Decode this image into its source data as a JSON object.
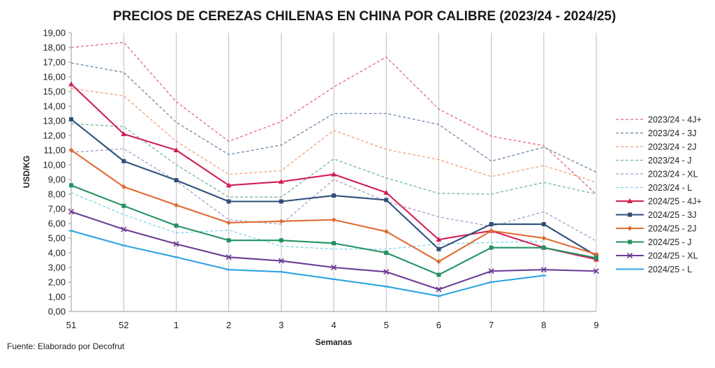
{
  "chart_data": {
    "type": "line",
    "title": "PRECIOS DE CEREZAS CHILENAS EN CHINA POR CALIBRE (2023/24 - 2024/25)",
    "xlabel": "Semanas",
    "ylabel": "USD/KG",
    "source": "Fuente: Elaborado por Decofrut",
    "categories": [
      "51",
      "52",
      "1",
      "2",
      "3",
      "4",
      "5",
      "6",
      "7",
      "8",
      "9"
    ],
    "ylim": [
      0,
      19
    ],
    "ystep": 1,
    "ytick_labels": [
      "0,00",
      "1,00",
      "2,00",
      "3,00",
      "4,00",
      "5,00",
      "6,00",
      "7,00",
      "8,00",
      "9,00",
      "10,00",
      "11,00",
      "12,00",
      "13,00",
      "14,00",
      "15,00",
      "16,00",
      "17,00",
      "18,00",
      "19,00"
    ],
    "grid": "vertical",
    "legend_position": "right",
    "series": [
      {
        "name": "2023/24 - 4J+",
        "color": "#e06a7c",
        "style": "dashed",
        "marker": "none",
        "values": [
          18.0,
          18.35,
          14.3,
          11.6,
          12.95,
          15.3,
          17.35,
          13.8,
          11.95,
          11.3,
          8.0
        ]
      },
      {
        "name": "2023/24 - 3J",
        "color": "#6a88a6",
        "style": "dashed",
        "marker": "none",
        "values": [
          16.95,
          16.3,
          12.9,
          10.7,
          11.35,
          13.5,
          13.5,
          12.75,
          10.25,
          11.2,
          9.5
        ]
      },
      {
        "name": "2023/24 - 2J",
        "color": "#f0a07a",
        "style": "dashed",
        "marker": "none",
        "values": [
          15.2,
          14.7,
          11.6,
          9.35,
          9.6,
          12.35,
          11.05,
          10.35,
          9.2,
          9.95,
          8.8
        ]
      },
      {
        "name": "2023/24 - J",
        "color": "#6db89a",
        "style": "dashed",
        "marker": "none",
        "values": [
          12.8,
          12.6,
          10.0,
          7.8,
          7.8,
          10.4,
          9.1,
          8.05,
          8.0,
          8.8,
          8.0
        ]
      },
      {
        "name": "2023/24 - XL",
        "color": "#a99bc9",
        "style": "dashed",
        "marker": "none",
        "values": [
          10.85,
          11.1,
          8.9,
          6.25,
          5.95,
          9.0,
          7.5,
          6.45,
          5.8,
          6.8,
          4.8
        ]
      },
      {
        "name": "2023/24 - L",
        "color": "#7fd3ea",
        "style": "dashed",
        "marker": "none",
        "values": [
          8.1,
          6.6,
          5.35,
          5.55,
          4.45,
          4.25,
          4.25,
          4.6,
          4.7,
          4.8,
          null
        ]
      },
      {
        "name": "2024/25 - 4J+",
        "color": "#d11f52",
        "style": "solid",
        "marker": "triangle",
        "values": [
          15.5,
          12.1,
          11.0,
          8.6,
          8.85,
          9.35,
          8.1,
          4.9,
          5.5,
          4.35,
          3.55
        ]
      },
      {
        "name": "2024/25 - 3J",
        "color": "#2f4f7a",
        "style": "solid",
        "marker": "square",
        "values": [
          13.1,
          10.25,
          8.95,
          7.5,
          7.5,
          7.9,
          7.6,
          4.25,
          5.95,
          5.95,
          3.8
        ]
      },
      {
        "name": "2024/25 - 2J",
        "color": "#e06b32",
        "style": "solid",
        "marker": "diamond",
        "values": [
          11.0,
          8.5,
          7.25,
          6.05,
          6.15,
          6.25,
          5.45,
          3.4,
          5.5,
          5.0,
          3.9
        ]
      },
      {
        "name": "2024/25 - J",
        "color": "#239262",
        "style": "solid",
        "marker": "square",
        "values": [
          8.6,
          7.2,
          5.85,
          4.85,
          4.85,
          4.65,
          4.0,
          2.5,
          4.35,
          4.35,
          3.65
        ]
      },
      {
        "name": "2024/25 - XL",
        "color": "#6c3b96",
        "style": "solid",
        "marker": "x",
        "values": [
          6.8,
          5.6,
          4.6,
          3.7,
          3.45,
          3.0,
          2.7,
          1.5,
          2.75,
          2.85,
          2.75
        ]
      },
      {
        "name": "2024/25 - L",
        "color": "#2ea4e4",
        "style": "solid",
        "marker": "dash",
        "values": [
          5.5,
          4.5,
          3.7,
          2.85,
          2.7,
          2.2,
          1.7,
          1.05,
          2.0,
          2.45,
          null
        ]
      }
    ]
  }
}
